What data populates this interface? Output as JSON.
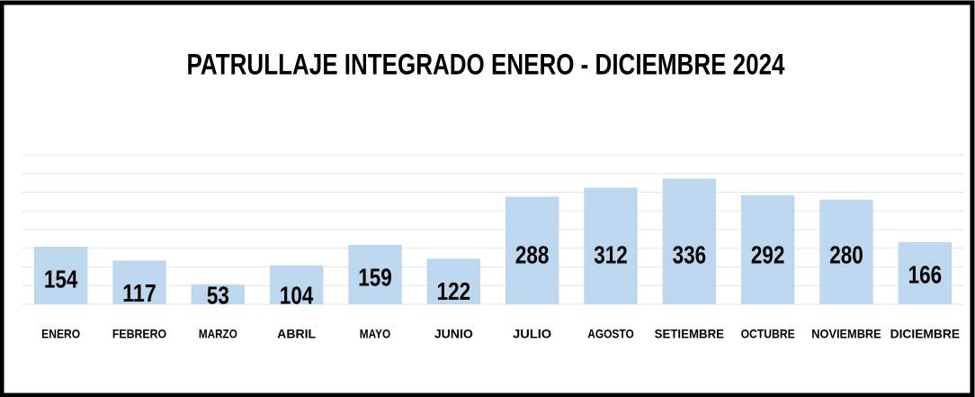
{
  "chart_data": {
    "type": "bar",
    "title": "PATRULLAJE INTEGRADO ENERO - DICIEMBRE 2024",
    "categories": [
      "ENERO",
      "FEBRERO",
      "MARZO",
      "ABRIL",
      "MAYO",
      "JUNIO",
      "JULIO",
      "AGOSTO",
      "SETIEMBRE",
      "OCTUBRE",
      "NOVIEMBRE",
      "DICIEMBRE"
    ],
    "values": [
      154,
      117,
      53,
      104,
      159,
      122,
      288,
      312,
      336,
      292,
      280,
      166
    ],
    "color": "#bdd7ee",
    "ylim": [
      0,
      400
    ],
    "yticks": [
      0,
      50,
      100,
      150,
      200,
      250,
      300,
      350,
      400
    ],
    "grid": true
  }
}
